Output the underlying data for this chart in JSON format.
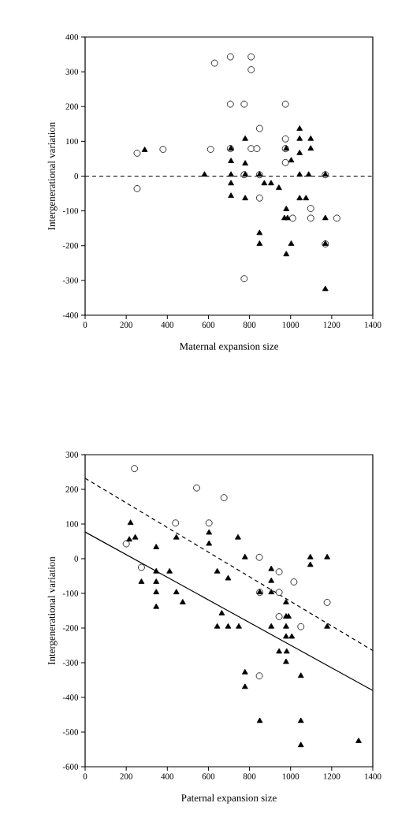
{
  "chart_data": [
    {
      "type": "scatter",
      "xlabel": "Maternal expansion size",
      "ylabel": "Intergenerational variation",
      "xlim": [
        0,
        1400
      ],
      "ylim": [
        -400,
        400
      ],
      "xticks": [
        0,
        200,
        400,
        600,
        800,
        1000,
        1200,
        1400
      ],
      "yticks": [
        -400,
        -300,
        -200,
        -100,
        0,
        100,
        200,
        300,
        400
      ],
      "grid": false,
      "series": [
        {
          "color": "#000000",
          "marker": "circle",
          "x": [
            253,
            253,
            379,
            611,
            630,
            707,
            707,
            707,
            808,
            808,
            808,
            774,
            774,
            774,
            836,
            849,
            849,
            849,
            975,
            975,
            975,
            975,
            1010,
            1098,
            1098,
            1169,
            1169,
            1225
          ],
          "values": [
            66,
            -36,
            77,
            77,
            325,
            343,
            207,
            79,
            343,
            306,
            79,
            207,
            4,
            -295,
            79,
            137,
            4,
            -63,
            207,
            107,
            39,
            79,
            -121,
            -93,
            -121,
            4,
            -195,
            -121
          ]
        },
        {
          "color": "#000000",
          "marker": "triangle",
          "x": [
            290,
            581,
            710,
            710,
            710,
            710,
            710,
            779,
            779,
            779,
            779,
            849,
            849,
            849,
            872,
            905,
            943,
            979,
            979,
            970,
            985,
            979,
            1003,
            1003,
            1044,
            1044,
            1044,
            1044,
            1044,
            1075,
            1088,
            1098,
            1098,
            1169,
            1169,
            1169,
            1169
          ],
          "values": [
            75,
            4,
            79,
            43,
            4,
            -21,
            -57,
            107,
            36,
            4,
            -64,
            4,
            -164,
            -195,
            -21,
            -21,
            -34,
            79,
            -95,
            -121,
            -121,
            -225,
            45,
            -195,
            136,
            107,
            66,
            4,
            -64,
            -64,
            4,
            107,
            79,
            4,
            -121,
            -195,
            -325
          ]
        }
      ],
      "ref_lines": [
        {
          "axis": "y",
          "value": 0,
          "line_style": "dashed",
          "color": "#000000"
        }
      ]
    },
    {
      "type": "scatter",
      "xlabel": "Paternal expansion size",
      "ylabel": "Intergenerational variation",
      "xlim": [
        0,
        1400
      ],
      "ylim": [
        -600,
        300
      ],
      "xticks": [
        0,
        200,
        400,
        600,
        800,
        1000,
        1200,
        1400
      ],
      "yticks": [
        -600,
        -500,
        -400,
        -300,
        -200,
        -100,
        0,
        100,
        200,
        300
      ],
      "grid": false,
      "series": [
        {
          "color": "#000000",
          "marker": "circle",
          "x": [
            240,
            543,
            676,
            440,
            603,
            200,
            274,
            848,
            944,
            1016,
            1178,
            850,
            944,
            944,
            1050,
            848
          ],
          "values": [
            260,
            204,
            176,
            103,
            103,
            43,
            -25,
            4,
            -38,
            -67,
            -126,
            -97,
            -97,
            -167,
            -196,
            -338
          ]
        },
        {
          "color": "#000000",
          "marker": "triangle",
          "x": [
            221,
            244,
            215,
            346,
            444,
            603,
            603,
            274,
            346,
            346,
            346,
            346,
            411,
            444,
            475,
            643,
            696,
            665,
            643,
            696,
            744,
            778,
            906,
            906,
            850,
            906,
            978,
            978,
            990,
            748,
            906,
            978,
            978,
            1006,
            944,
            981,
            978,
            1096,
            1096,
            1178,
            1178,
            778,
            778,
            1050,
            850,
            1050,
            1050,
            1331
          ],
          "values": [
            103,
            61,
            55,
            33,
            61,
            75,
            43,
            -67,
            -37,
            -67,
            -97,
            -139,
            -37,
            -97,
            -126,
            -37,
            -57,
            -158,
            -196,
            -196,
            61,
            4,
            -30,
            -64,
            -97,
            -97,
            -126,
            -167,
            -167,
            -196,
            -196,
            -196,
            -225,
            -225,
            -268,
            -268,
            -298,
            4,
            -18,
            4,
            -196,
            -328,
            -370,
            -338,
            -468,
            -468,
            -538,
            -526
          ]
        },
        {
          "type": "line",
          "color": "#000000",
          "marker": "none",
          "line_style": "solid",
          "x": [
            0,
            1400
          ],
          "values": [
            77,
            -380
          ]
        },
        {
          "type": "line",
          "color": "#000000",
          "marker": "none",
          "line_style": "dashed",
          "x": [
            0,
            1400
          ],
          "values": [
            232,
            -265
          ]
        }
      ]
    }
  ]
}
